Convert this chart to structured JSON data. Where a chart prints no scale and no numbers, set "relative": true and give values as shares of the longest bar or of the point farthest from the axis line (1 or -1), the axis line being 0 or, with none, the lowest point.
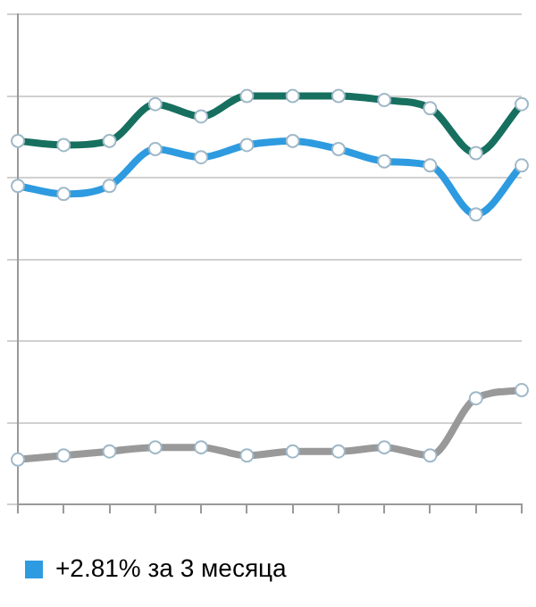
{
  "chart_data": {
    "type": "line",
    "relative": true,
    "categories": [
      null,
      null,
      null,
      null,
      null,
      null,
      null,
      null,
      null,
      null,
      null,
      null
    ],
    "series": [
      {
        "color": "#17705f",
        "values": [
          0.89,
          0.88,
          0.89,
          0.98,
          0.95,
          1.0,
          1.0,
          1.0,
          0.99,
          0.97,
          0.86,
          0.98
        ]
      },
      {
        "name": "+2.81% за 3 месяца",
        "color": "#2e9be0",
        "values": [
          0.78,
          0.76,
          0.78,
          0.87,
          0.85,
          0.88,
          0.89,
          0.87,
          0.84,
          0.83,
          0.71,
          0.83
        ]
      },
      {
        "color": "#999999",
        "values": [
          0.11,
          0.12,
          0.13,
          0.14,
          0.14,
          0.12,
          0.13,
          0.13,
          0.14,
          0.12,
          0.26,
          0.28
        ]
      }
    ],
    "grid": "y",
    "legend": "bottom",
    "marker": "circle",
    "line_style": "solid"
  }
}
